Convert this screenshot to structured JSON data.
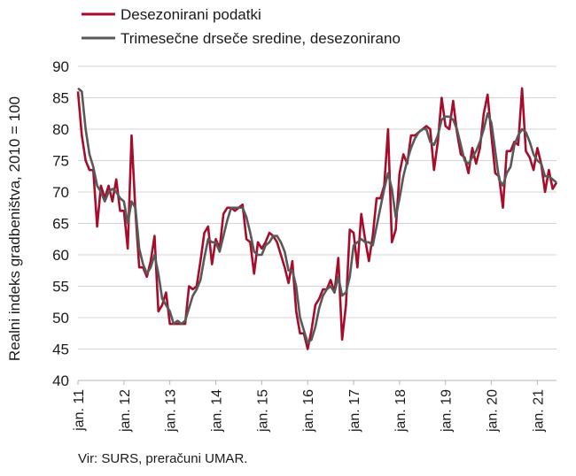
{
  "chart_data": {
    "type": "line",
    "title": "",
    "xlabel": "",
    "ylabel": "Realni indeks gradbeništva, 2010 = 100",
    "ylim": [
      40,
      90
    ],
    "yticks": [
      "40",
      "45",
      "50",
      "55",
      "60",
      "65",
      "70",
      "75",
      "80",
      "85",
      "90"
    ],
    "xtick_labels": [
      "jan. 11",
      "jan. 12",
      "jan. 13",
      "jan. 14",
      "jan. 15",
      "jan. 16",
      "jan. 17",
      "jan. 18",
      "jan. 19",
      "jan. 20",
      "jan. 21"
    ],
    "x_start": "2011-01",
    "grid": "horizontal",
    "legend_position": "top",
    "series": [
      {
        "name": "Desezonirani podatki",
        "color": "#a50d2b",
        "values": [
          86.0,
          79.0,
          75.0,
          73.5,
          73.5,
          64.5,
          71.0,
          69.0,
          71.0,
          68.5,
          72.0,
          67.0,
          67.0,
          61.0,
          79.0,
          67.0,
          58.0,
          58.0,
          56.5,
          59.0,
          63.0,
          51.0,
          52.0,
          54.0,
          49.0,
          49.0,
          49.0,
          49.0,
          49.0,
          55.0,
          54.5,
          55.0,
          59.0,
          63.5,
          64.5,
          58.5,
          62.5,
          61.0,
          66.5,
          67.5,
          67.5,
          67.0,
          67.5,
          68.0,
          62.5,
          62.0,
          57.0,
          62.0,
          61.0,
          62.0,
          63.5,
          63.0,
          62.0,
          60.0,
          58.0,
          55.5,
          59.0,
          51.0,
          47.5,
          47.5,
          45.0,
          48.0,
          52.0,
          53.0,
          54.5,
          54.5,
          56.0,
          54.0,
          59.5,
          46.5,
          52.0,
          64.0,
          63.5,
          58.0,
          66.5,
          62.5,
          59.0,
          63.0,
          69.0,
          69.0,
          71.0,
          80.0,
          62.0,
          64.0,
          73.0,
          76.0,
          74.5,
          79.0,
          79.0,
          79.5,
          80.0,
          80.5,
          80.0,
          73.5,
          78.0,
          85.0,
          80.5,
          80.0,
          84.5,
          79.5,
          76.0,
          75.5,
          73.0,
          77.0,
          74.5,
          77.0,
          82.5,
          85.5,
          79.0,
          73.0,
          72.5,
          67.5,
          76.5,
          76.5,
          78.0,
          77.5,
          86.5,
          76.5,
          75.5,
          73.5,
          77.0,
          74.5,
          70.0,
          73.5,
          70.5,
          71.5
        ]
      },
      {
        "name": "Trimesečne drseče sredine, desezonirano",
        "color": "#595959",
        "values": [
          86.5,
          86.0,
          80.0,
          76.0,
          74.0,
          71.0,
          70.0,
          68.5,
          70.0,
          70.5,
          70.0,
          69.0,
          68.5,
          65.0,
          68.5,
          67.5,
          61.0,
          58.5,
          57.0,
          58.0,
          60.0,
          57.0,
          53.0,
          52.0,
          51.0,
          49.0,
          49.5,
          49.0,
          49.5,
          51.5,
          53.5,
          54.5,
          56.0,
          59.5,
          62.5,
          62.0,
          62.0,
          60.5,
          63.0,
          65.5,
          67.5,
          67.5,
          67.5,
          67.5,
          66.0,
          63.5,
          60.5,
          60.0,
          60.0,
          61.5,
          62.0,
          63.0,
          63.0,
          62.0,
          60.5,
          57.5,
          57.5,
          55.0,
          50.0,
          48.0,
          46.0,
          46.5,
          48.5,
          51.5,
          53.5,
          54.5,
          55.0,
          54.0,
          56.5,
          53.5,
          54.0,
          56.5,
          61.5,
          62.0,
          62.5,
          62.0,
          62.0,
          61.5,
          64.5,
          67.5,
          70.5,
          73.0,
          70.5,
          66.0,
          69.0,
          72.5,
          75.0,
          77.0,
          78.5,
          79.5,
          80.0,
          80.0,
          78.0,
          77.5,
          79.0,
          81.5,
          82.0,
          82.0,
          81.5,
          80.0,
          77.5,
          75.0,
          74.5,
          75.5,
          76.5,
          78.0,
          80.0,
          82.5,
          81.0,
          76.5,
          72.0,
          71.0,
          73.0,
          74.0,
          77.5,
          79.0,
          80.0,
          79.5,
          78.0,
          76.0,
          75.0,
          74.5,
          72.5,
          72.5,
          72.0,
          71.5
        ]
      }
    ]
  },
  "source_text": "Vir: SURS, preračuni UMAR."
}
